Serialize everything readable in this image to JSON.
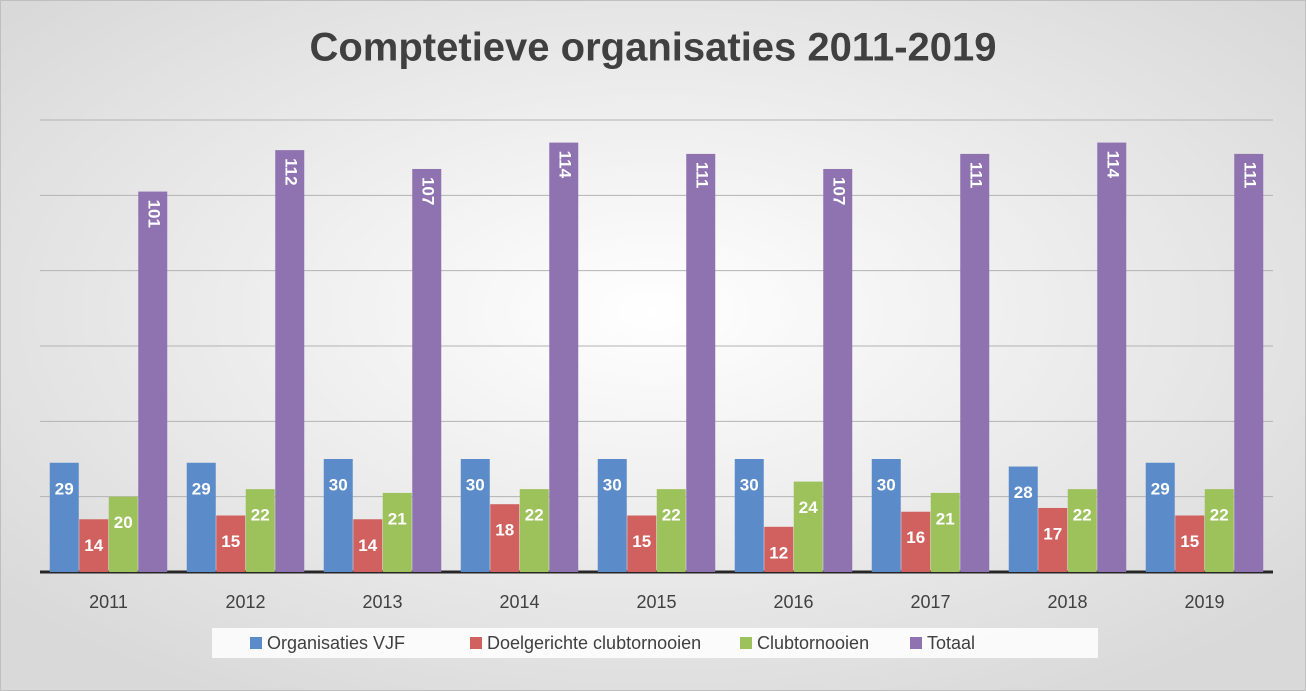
{
  "chart_data": {
    "type": "bar",
    "title": "Comptetieve organisaties 2011-2019",
    "categories": [
      "2011",
      "2012",
      "2013",
      "2014",
      "2015",
      "2016",
      "2017",
      "2018",
      "2019"
    ],
    "series": [
      {
        "name": "Organisaties VJF",
        "color": "#5b8bc9",
        "values": [
          29,
          29,
          30,
          30,
          30,
          30,
          30,
          28,
          29
        ]
      },
      {
        "name": "Doelgerichte clubtornooien",
        "color": "#d0615e",
        "values": [
          14,
          15,
          14,
          18,
          15,
          12,
          16,
          17,
          15
        ]
      },
      {
        "name": "Clubtornooien",
        "color": "#9dc25c",
        "values": [
          20,
          22,
          21,
          22,
          22,
          24,
          21,
          22,
          22
        ]
      },
      {
        "name": "Totaal",
        "color": "#8f73b1",
        "values": [
          101,
          112,
          107,
          114,
          111,
          107,
          111,
          114,
          111
        ]
      }
    ],
    "ylim": [
      0,
      120
    ],
    "yticks": [
      0,
      20,
      40,
      60,
      80,
      100,
      120
    ],
    "grid": true,
    "legend": "bottom"
  }
}
